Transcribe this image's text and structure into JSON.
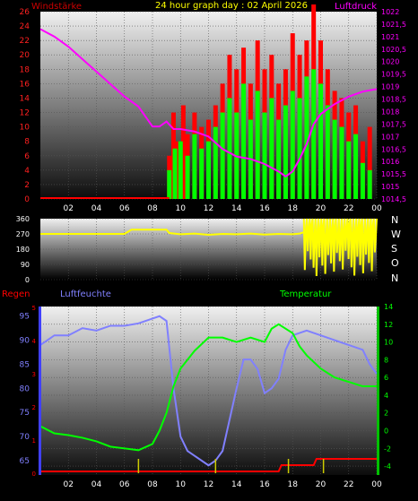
{
  "header": {
    "left_label": "Windstärke",
    "title": "24 hour graph day : 02 April 2026",
    "right_label": "Luftdruck"
  },
  "panel2": {
    "compass": [
      "N",
      "W",
      "S",
      "O",
      "N"
    ]
  },
  "panel3": {
    "rain_label": "Regen",
    "humidity_label": "Luftfeuchte",
    "temperature_label": "Temperatur"
  },
  "colors": {
    "wind_gust": "#ff0000",
    "wind_avg": "#00ff00",
    "pressure": "#ff00ff",
    "direction": "#ffff00",
    "humidity": "#8080ff",
    "temperature": "#00ff00",
    "rain": "#ff0000",
    "rain_events": "#cccc00"
  },
  "chart_data": [
    {
      "type": "bar",
      "name": "wind_pressure",
      "x_ticks": [
        "02",
        "04",
        "06",
        "08",
        "10",
        "12",
        "14",
        "16",
        "18",
        "20",
        "22",
        "00"
      ],
      "left_axis": {
        "label": "Windstärke",
        "ylim": [
          0,
          26
        ],
        "ticks": [
          0,
          2,
          4,
          6,
          8,
          10,
          12,
          14,
          16,
          18,
          20,
          22,
          24,
          26
        ]
      },
      "right_axis": {
        "label": "Luftdruck",
        "ylim": [
          1014.5,
          1022
        ],
        "ticks": [
          "1014,5",
          "1015",
          "1015,5",
          "1016",
          "1016,5",
          "1017",
          "1017,5",
          "1018",
          "1018,5",
          "1019",
          "1019,5",
          "1020",
          "1020,5",
          "1021",
          "1021,5",
          "1022"
        ]
      },
      "series": [
        {
          "name": "gust",
          "axis": "left",
          "points": [
            [
              0,
              0
            ],
            [
              2,
              0
            ],
            [
              4,
              0
            ],
            [
              6,
              0
            ],
            [
              8,
              0
            ],
            [
              9.0,
              0
            ],
            [
              9.2,
              6
            ],
            [
              9.5,
              12
            ],
            [
              9.8,
              8
            ],
            [
              10.2,
              13
            ],
            [
              10.5,
              9
            ],
            [
              11,
              12
            ],
            [
              11.5,
              10
            ],
            [
              12,
              11
            ],
            [
              12.5,
              13
            ],
            [
              13,
              16
            ],
            [
              13.5,
              20
            ],
            [
              14,
              18
            ],
            [
              14.5,
              21
            ],
            [
              15,
              16
            ],
            [
              15.5,
              22
            ],
            [
              16,
              18
            ],
            [
              16.5,
              20
            ],
            [
              17,
              16
            ],
            [
              17.5,
              18
            ],
            [
              18,
              23
            ],
            [
              18.5,
              20
            ],
            [
              19,
              22
            ],
            [
              19.5,
              27
            ],
            [
              20,
              22
            ],
            [
              20.5,
              18
            ],
            [
              21,
              15
            ],
            [
              21.5,
              14
            ],
            [
              22,
              12
            ],
            [
              22.5,
              13
            ],
            [
              23,
              8
            ],
            [
              23.5,
              10
            ],
            [
              24,
              0
            ]
          ]
        },
        {
          "name": "average",
          "axis": "left",
          "points": [
            [
              9.2,
              4
            ],
            [
              9.6,
              7
            ],
            [
              10,
              8
            ],
            [
              10.5,
              6
            ],
            [
              11,
              9
            ],
            [
              11.5,
              7
            ],
            [
              12,
              8
            ],
            [
              12.5,
              10
            ],
            [
              13,
              12
            ],
            [
              13.5,
              14
            ],
            [
              14,
              12
            ],
            [
              14.5,
              16
            ],
            [
              15,
              11
            ],
            [
              15.5,
              15
            ],
            [
              16,
              12
            ],
            [
              16.5,
              14
            ],
            [
              17,
              11
            ],
            [
              17.5,
              13
            ],
            [
              18,
              15
            ],
            [
              18.5,
              14
            ],
            [
              19,
              17
            ],
            [
              19.5,
              18
            ],
            [
              20,
              16
            ],
            [
              20.5,
              13
            ],
            [
              21,
              11
            ],
            [
              21.5,
              10
            ],
            [
              22,
              8
            ],
            [
              22.5,
              9
            ],
            [
              23,
              5
            ],
            [
              23.5,
              4
            ]
          ]
        },
        {
          "name": "pressure",
          "axis": "right",
          "points": [
            [
              0,
              1021.3
            ],
            [
              1,
              1021
            ],
            [
              2,
              1020.6
            ],
            [
              3,
              1020.1
            ],
            [
              4,
              1019.6
            ],
            [
              5,
              1019.1
            ],
            [
              6,
              1018.6
            ],
            [
              7,
              1018.2
            ],
            [
              8,
              1017.4
            ],
            [
              8.5,
              1017.4
            ],
            [
              9,
              1017.6
            ],
            [
              9.5,
              1017.3
            ],
            [
              10,
              1017.3
            ],
            [
              11,
              1017.2
            ],
            [
              12,
              1017
            ],
            [
              13,
              1016.5
            ],
            [
              14,
              1016.2
            ],
            [
              15,
              1016.1
            ],
            [
              16,
              1015.9
            ],
            [
              17,
              1015.6
            ],
            [
              17.5,
              1015.4
            ],
            [
              18,
              1015.6
            ],
            [
              18.5,
              1016.1
            ],
            [
              19,
              1016.7
            ],
            [
              19.5,
              1017.5
            ],
            [
              20,
              1017.9
            ],
            [
              21,
              1018.3
            ],
            [
              22,
              1018.6
            ],
            [
              23,
              1018.8
            ],
            [
              24,
              1018.9
            ]
          ]
        }
      ]
    },
    {
      "type": "line",
      "name": "wind_direction",
      "y_ticks": [
        0,
        90,
        180,
        270,
        360
      ],
      "ylim": [
        0,
        360
      ],
      "series": [
        {
          "name": "direction",
          "points": [
            [
              0,
              270
            ],
            [
              6,
              270
            ],
            [
              6.5,
              295
            ],
            [
              9,
              295
            ],
            [
              9.2,
              275
            ],
            [
              10,
              268
            ],
            [
              11,
              272
            ],
            [
              12,
              265
            ],
            [
              13,
              270
            ],
            [
              14,
              268
            ],
            [
              15,
              272
            ],
            [
              16,
              266
            ],
            [
              17,
              270
            ],
            [
              18,
              268
            ],
            [
              18.5,
              272
            ],
            [
              18.8,
              280
            ]
          ]
        }
      ]
    },
    {
      "type": "line",
      "name": "rain_humidity_temperature",
      "x_ticks": [
        "02",
        "04",
        "06",
        "08",
        "10",
        "12",
        "14",
        "16",
        "18",
        "20",
        "22",
        "00"
      ],
      "left_axis": {
        "label": "Regen / Luftfeuchte",
        "ylim": [
          62,
          97
        ],
        "ticks": [
          65,
          70,
          75,
          80,
          85,
          90,
          95
        ]
      },
      "right_axis": {
        "label": "Temperatur",
        "ylim": [
          -5,
          14
        ],
        "ticks": [
          -4,
          -2,
          0,
          2,
          4,
          6,
          8,
          10,
          12,
          14
        ]
      },
      "rain_scale": [
        0,
        1,
        2,
        3,
        4,
        5
      ],
      "series": [
        {
          "name": "humidity",
          "axis": "left",
          "points": [
            [
              0,
              89
            ],
            [
              1,
              91
            ],
            [
              2,
              91
            ],
            [
              3,
              92.5
            ],
            [
              4,
              92
            ],
            [
              5,
              93
            ],
            [
              6,
              93
            ],
            [
              7,
              93.5
            ],
            [
              8,
              94.5
            ],
            [
              8.5,
              95
            ],
            [
              9,
              94
            ],
            [
              9.5,
              80
            ],
            [
              10,
              70
            ],
            [
              10.5,
              67
            ],
            [
              11,
              66
            ],
            [
              12,
              64
            ],
            [
              12.5,
              65
            ],
            [
              13,
              67
            ],
            [
              14,
              80
            ],
            [
              14.5,
              86
            ],
            [
              15,
              86
            ],
            [
              15.5,
              84
            ],
            [
              16,
              79
            ],
            [
              16.5,
              80
            ],
            [
              17,
              82
            ],
            [
              17.5,
              88
            ],
            [
              18,
              91
            ],
            [
              19,
              92
            ],
            [
              20,
              91
            ],
            [
              21,
              90
            ],
            [
              22,
              89
            ],
            [
              23,
              88
            ],
            [
              23.5,
              85
            ],
            [
              24,
              83
            ]
          ]
        },
        {
          "name": "temperature",
          "axis": "right",
          "points": [
            [
              0,
              0.5
            ],
            [
              1,
              -0.3
            ],
            [
              2,
              -0.5
            ],
            [
              3,
              -0.8
            ],
            [
              4,
              -1.2
            ],
            [
              5,
              -1.8
            ],
            [
              6,
              -2
            ],
            [
              7,
              -2.2
            ],
            [
              8,
              -1.5
            ],
            [
              8.5,
              0
            ],
            [
              9,
              2
            ],
            [
              9.5,
              5
            ],
            [
              10,
              7
            ],
            [
              11,
              9
            ],
            [
              12,
              10.5
            ],
            [
              13,
              10.5
            ],
            [
              14,
              10
            ],
            [
              15,
              10.5
            ],
            [
              16,
              10
            ],
            [
              16.5,
              11.5
            ],
            [
              17,
              12
            ],
            [
              18,
              11
            ],
            [
              18.5,
              9.5
            ],
            [
              19,
              8.5
            ],
            [
              20,
              7
            ],
            [
              21,
              6
            ],
            [
              22,
              5.5
            ],
            [
              23,
              5
            ],
            [
              24,
              5
            ]
          ]
        },
        {
          "name": "rain",
          "axis": "rain",
          "points": [
            [
              0,
              0
            ],
            [
              17,
              0
            ],
            [
              17.2,
              1
            ],
            [
              19.5,
              1
            ],
            [
              19.7,
              2
            ],
            [
              24,
              2
            ]
          ]
        }
      ],
      "events_x": [
        7,
        12.5,
        17.7,
        20.2
      ]
    }
  ]
}
